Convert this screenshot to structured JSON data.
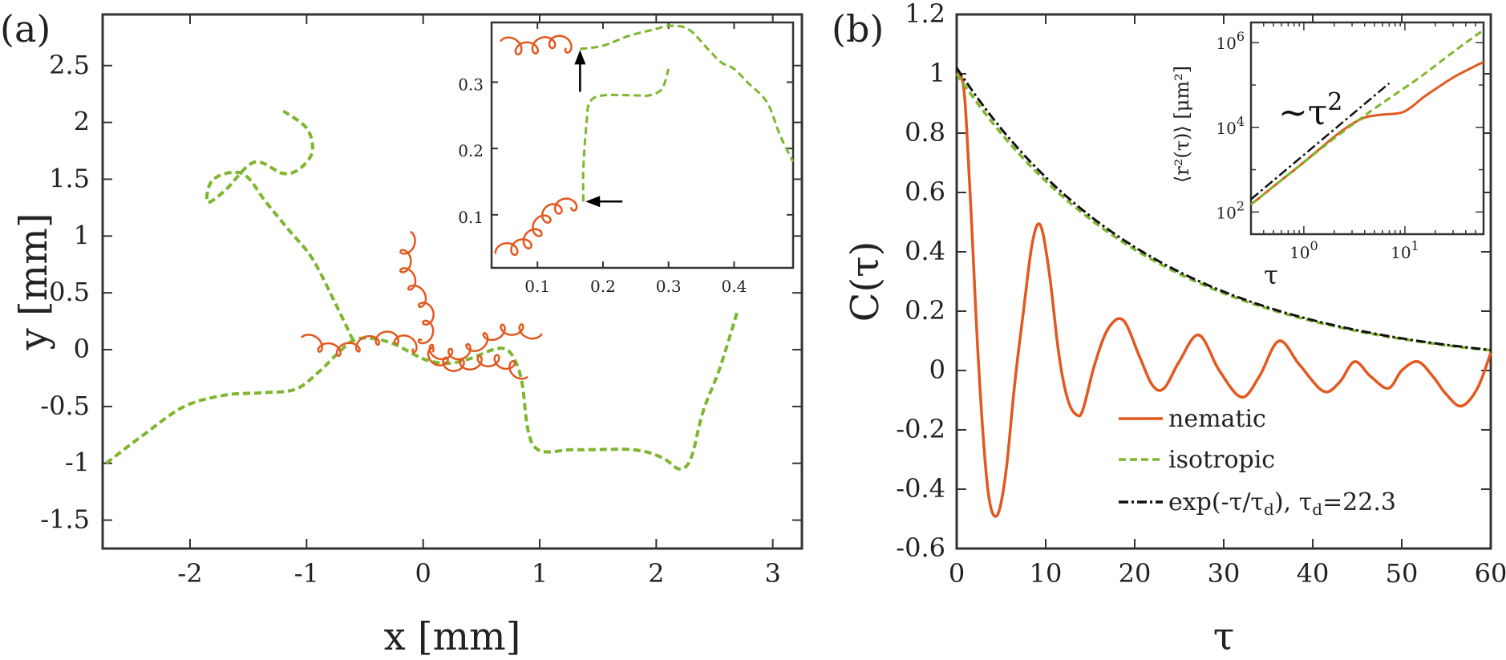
{
  "panel_labels": {
    "a": "(a)",
    "b": "(b)"
  },
  "colors": {
    "nematic": "#e2581f",
    "isotropic": "#7fb62f",
    "fit": "#111111",
    "axis": "#333333"
  },
  "chart_data": [
    {
      "id": "a",
      "type": "line",
      "title": "",
      "xlabel": "x [mm]",
      "ylabel": "y [mm]",
      "xlim": [
        -2.75,
        3.25
      ],
      "ylim": [
        -1.75,
        2.95
      ],
      "xticks": [
        -2,
        -1,
        0,
        1,
        2,
        3
      ],
      "xtick_labels": [
        "-2",
        "-1",
        "0",
        "1",
        "2",
        "3"
      ],
      "yticks": [
        -1.5,
        -1,
        -0.5,
        0,
        0.5,
        1,
        1.5,
        2,
        2.5
      ],
      "ytick_labels": [
        "-1.5",
        "-1",
        "-0.5",
        "0",
        "0.5",
        "1",
        "1.5",
        "2",
        "2.5"
      ],
      "grid": false,
      "series": [
        {
          "key": "isotropic",
          "style": "dashed",
          "x": [
            -2.72,
            -2.4,
            -2.05,
            -1.7,
            -1.4,
            -1.1,
            -0.9,
            -0.75,
            -0.6,
            -0.45,
            -0.25,
            0.0,
            0.2,
            0.4,
            0.6,
            0.72,
            0.8,
            0.85,
            0.95,
            1.3,
            1.8,
            2.05,
            2.2,
            2.3,
            2.4,
            2.55,
            2.7
          ],
          "y": [
            -1.0,
            -0.75,
            -0.5,
            -0.4,
            -0.38,
            -0.35,
            -0.2,
            -0.05,
            0.08,
            0.1,
            0.05,
            -0.08,
            -0.12,
            -0.08,
            0.0,
            0.0,
            -0.12,
            -0.3,
            -0.85,
            -0.88,
            -0.88,
            -0.95,
            -1.05,
            -0.95,
            -0.55,
            -0.15,
            0.35
          ]
        },
        {
          "key": "isotropic-loop",
          "style": "dashed",
          "x": [
            -0.6,
            -0.75,
            -0.95,
            -1.15,
            -1.35,
            -1.55,
            -1.8,
            -1.85,
            -1.7,
            -1.45,
            -1.2,
            -1.05,
            -0.95,
            -1.0,
            -1.2
          ],
          "y": [
            0.08,
            0.4,
            0.8,
            1.05,
            1.3,
            1.55,
            1.5,
            1.3,
            1.4,
            1.65,
            1.55,
            1.6,
            1.75,
            1.95,
            2.1
          ]
        },
        {
          "key": "nematic",
          "style": "solid",
          "center": [
            0.0,
            0.0
          ],
          "lobes": 4,
          "lobe_length": 1.05,
          "loops_per_lobe": 6,
          "loop_radius": 0.055
        }
      ]
    },
    {
      "id": "a-inset",
      "type": "line",
      "xlim": [
        0.03,
        0.49
      ],
      "ylim": [
        0.02,
        0.39
      ],
      "xticks": [
        0.1,
        0.2,
        0.3,
        0.4
      ],
      "xtick_labels": [
        "0.1",
        "0.2",
        "0.3",
        "0.4"
      ],
      "yticks": [
        0.1,
        0.2,
        0.3
      ],
      "ytick_labels": [
        "0.1",
        "0.2",
        "0.3"
      ],
      "series": [
        {
          "key": "isotropic",
          "style": "dashed",
          "x": [
            0.17,
            0.17,
            0.175,
            0.18,
            0.2,
            0.25,
            0.27,
            0.29,
            0.3
          ],
          "y": [
            0.12,
            0.17,
            0.24,
            0.27,
            0.28,
            0.28,
            0.28,
            0.29,
            0.32
          ]
        },
        {
          "key": "isotropic-2",
          "style": "dashed",
          "x": [
            0.165,
            0.2,
            0.24,
            0.28,
            0.3,
            0.33,
            0.36,
            0.38,
            0.4,
            0.42,
            0.45,
            0.47,
            0.49
          ],
          "y": [
            0.35,
            0.355,
            0.37,
            0.38,
            0.385,
            0.38,
            0.35,
            0.33,
            0.32,
            0.3,
            0.27,
            0.22,
            0.18
          ]
        },
        {
          "key": "nematic-top",
          "style": "solid",
          "x0": 0.16,
          "y0": 0.35,
          "x1": 0.06,
          "y1": 0.36,
          "loops": 4
        },
        {
          "key": "nematic-bottom",
          "style": "solid",
          "x0": 0.165,
          "y0": 0.12,
          "x1": 0.05,
          "y1": 0.05,
          "loops": 6
        }
      ],
      "arrows": [
        {
          "x": 0.165,
          "y": 0.3,
          "dir": "up"
        },
        {
          "x": 0.215,
          "y": 0.12,
          "dir": "left"
        }
      ]
    },
    {
      "id": "b",
      "type": "line",
      "title": "",
      "xlabel": "τ",
      "ylabel": "C(τ)",
      "xlim": [
        0,
        60
      ],
      "ylim": [
        -0.6,
        1.2
      ],
      "xticks": [
        0,
        10,
        20,
        30,
        40,
        50,
        60
      ],
      "xtick_labels": [
        "0",
        "10",
        "20",
        "30",
        "40",
        "50",
        "60"
      ],
      "yticks": [
        -0.6,
        -0.4,
        -0.2,
        0,
        0.2,
        0.4,
        0.6,
        0.8,
        1,
        1.2
      ],
      "ytick_labels": [
        "-0.6",
        "-0.4",
        "-0.2",
        "0",
        "0.2",
        "0.4",
        "0.6",
        "0.8",
        "1",
        "1.2"
      ],
      "grid": false,
      "legend_position": "bottom-right",
      "series": [
        {
          "key": "nematic",
          "name": "nematic",
          "style": "solid",
          "x": [
            0,
            0.8,
            1.5,
            2.5,
            3.5,
            4.5,
            5.5,
            6.5,
            7.5,
            8.5,
            9.4,
            10.4,
            11.5,
            12.5,
            13.5,
            14.2,
            15.5,
            17,
            18.7,
            20.5,
            22,
            23.3,
            25,
            27.2,
            29.5,
            32,
            34,
            36.2,
            38.5,
            41.2,
            43,
            44.7,
            46.5,
            48.5,
            50,
            51.8,
            53.5,
            55,
            56.7,
            58.5,
            60
          ],
          "y": [
            1.0,
            0.95,
            0.6,
            0.0,
            -0.4,
            -0.49,
            -0.35,
            -0.05,
            0.2,
            0.43,
            0.49,
            0.33,
            0.05,
            -0.1,
            -0.15,
            -0.13,
            0.02,
            0.14,
            0.17,
            0.05,
            -0.05,
            -0.06,
            0.03,
            0.12,
            0.0,
            -0.09,
            -0.02,
            0.1,
            0.02,
            -0.07,
            -0.04,
            0.03,
            -0.02,
            -0.06,
            0.0,
            0.03,
            -0.02,
            -0.08,
            -0.12,
            -0.06,
            0.06
          ]
        },
        {
          "key": "isotropic",
          "name": "isotropic",
          "style": "dashed",
          "function": "exp",
          "tau_d": 22.3,
          "amplitude": 1.0
        },
        {
          "key": "fit",
          "name": "exp(-τ/τ",
          "name_sub": "d",
          "name_end": "), τ",
          "name_sub2": "d",
          "name_val": "=22.3",
          "style": "dashdot",
          "function": "exp",
          "tau_d": 22.3,
          "amplitude": 1.02
        }
      ]
    },
    {
      "id": "b-inset",
      "type": "line",
      "scale": "log-log",
      "xlabel": "τ",
      "ylabel": "⟨r²(τ)⟩ [μm²]",
      "xlim": [
        0.3,
        60
      ],
      "ylim": [
        30,
        3000000
      ],
      "xtick_base": [
        "10",
        "10"
      ],
      "xtick_exp": [
        "0",
        "1"
      ],
      "ytick_base": [
        "10",
        "10",
        "10"
      ],
      "ytick_exp": [
        "2",
        "4",
        "6"
      ],
      "annotation": "~τ",
      "annotation_exp": "2",
      "series": [
        {
          "key": "nematic",
          "style": "solid",
          "x": [
            0.3,
            0.5,
            1,
            2,
            3,
            4,
            5,
            6,
            7,
            8,
            9,
            10,
            12,
            15,
            20,
            30,
            45,
            60
          ],
          "y": [
            150,
            400,
            1500,
            6000,
            12000,
            17000,
            19000,
            20000,
            20500,
            21000,
            22000,
            24000,
            32000,
            50000,
            80000,
            150000,
            250000,
            350000
          ]
        },
        {
          "key": "isotropic",
          "style": "dashed",
          "x": [
            0.3,
            0.5,
            1,
            2,
            4,
            8,
            15,
            30,
            60
          ],
          "y": [
            150,
            400,
            1500,
            5500,
            19000,
            60000,
            170000,
            600000,
            2000000
          ]
        },
        {
          "key": "fit",
          "style": "dashdot",
          "x": [
            0.3,
            7.0
          ],
          "y": [
            200,
            110000
          ]
        }
      ]
    }
  ]
}
